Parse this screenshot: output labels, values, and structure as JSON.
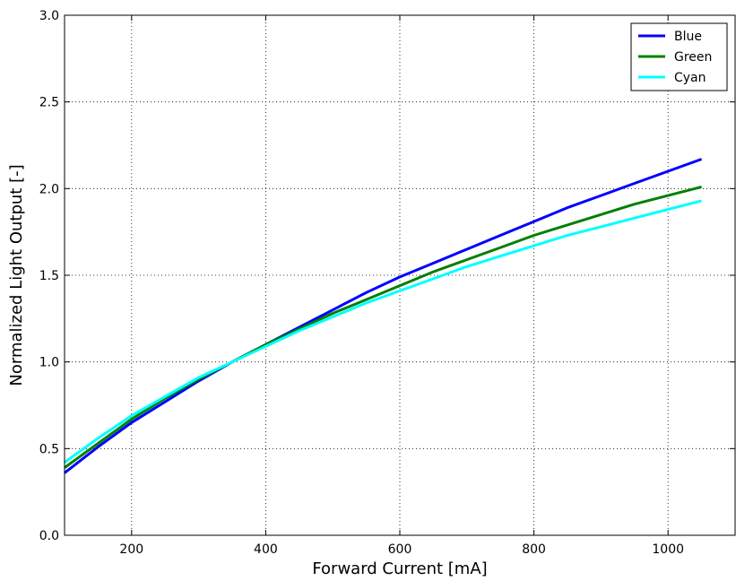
{
  "chart_data": {
    "type": "line",
    "title": "",
    "xlabel": "Forward Current [mA]",
    "ylabel": "Normalized Light Output [-]",
    "xlim": [
      100,
      1100
    ],
    "ylim": [
      0.0,
      3.0
    ],
    "xticks": [
      200,
      400,
      600,
      800,
      1000
    ],
    "xtick_labels": [
      "200",
      "400",
      "600",
      "800",
      "1000"
    ],
    "yticks": [
      0.0,
      0.5,
      1.0,
      1.5,
      2.0,
      2.5,
      3.0
    ],
    "ytick_labels": [
      "0.0",
      "0.5",
      "1.0",
      "1.5",
      "2.0",
      "2.5",
      "3.0"
    ],
    "grid": true,
    "legend_position": "top-right",
    "x": [
      100,
      150,
      200,
      250,
      300,
      350,
      400,
      450,
      500,
      550,
      600,
      650,
      700,
      750,
      800,
      850,
      900,
      950,
      1000,
      1050
    ],
    "series": [
      {
        "name": "Blue",
        "color": "#0000ff",
        "values": [
          0.36,
          0.51,
          0.65,
          0.77,
          0.89,
          1.0,
          1.1,
          1.2,
          1.3,
          1.4,
          1.49,
          1.57,
          1.65,
          1.73,
          1.81,
          1.89,
          1.96,
          2.03,
          2.1,
          2.17
        ]
      },
      {
        "name": "Green",
        "color": "#008000",
        "values": [
          0.39,
          0.53,
          0.67,
          0.79,
          0.9,
          1.0,
          1.1,
          1.19,
          1.28,
          1.36,
          1.44,
          1.52,
          1.59,
          1.66,
          1.73,
          1.79,
          1.85,
          1.91,
          1.96,
          2.01
        ]
      },
      {
        "name": "Cyan",
        "color": "#00ffff",
        "values": [
          0.42,
          0.56,
          0.69,
          0.8,
          0.91,
          1.0,
          1.09,
          1.18,
          1.26,
          1.34,
          1.41,
          1.48,
          1.55,
          1.61,
          1.67,
          1.73,
          1.78,
          1.83,
          1.88,
          1.93
        ]
      }
    ]
  }
}
